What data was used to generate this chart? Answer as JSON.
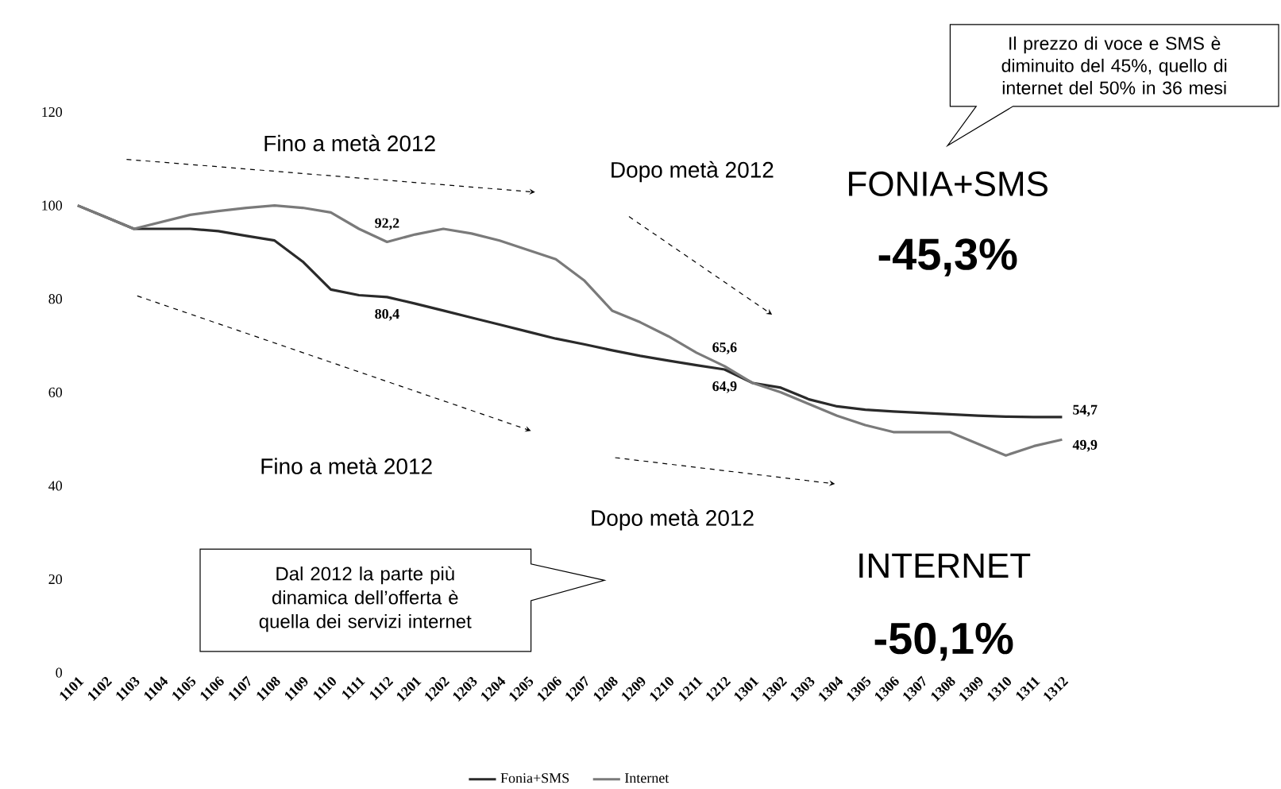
{
  "chart_data": {
    "type": "line",
    "categories": [
      "1101",
      "1102",
      "1103",
      "1104",
      "1105",
      "1106",
      "1107",
      "1108",
      "1109",
      "1110",
      "1111",
      "1112",
      "1201",
      "1202",
      "1203",
      "1204",
      "1205",
      "1206",
      "1207",
      "1208",
      "1209",
      "1210",
      "1211",
      "1212",
      "1301",
      "1302",
      "1303",
      "1304",
      "1305",
      "1306",
      "1307",
      "1308",
      "1309",
      "1310",
      "1311",
      "1312"
    ],
    "series": [
      {
        "name": "Fonia+SMS",
        "color": "#2a2a2a",
        "values": [
          100,
          97.5,
          95,
          95,
          95,
          94.5,
          93.5,
          92.5,
          88,
          82,
          80.8,
          80.4,
          79,
          77.5,
          76,
          74.5,
          73,
          71.5,
          70.3,
          69,
          67.8,
          66.8,
          65.8,
          64.9,
          62,
          61,
          58.5,
          57,
          56.3,
          55.9,
          55.6,
          55.3,
          55,
          54.8,
          54.7,
          54.7
        ],
        "value_labels": [
          null,
          null,
          null,
          null,
          null,
          null,
          null,
          null,
          null,
          null,
          null,
          "80,4",
          null,
          null,
          null,
          null,
          null,
          null,
          null,
          null,
          null,
          null,
          null,
          "64,9",
          null,
          null,
          null,
          null,
          null,
          null,
          null,
          null,
          null,
          null,
          null,
          "54,7"
        ]
      },
      {
        "name": "Internet",
        "color": "#7a7a7a",
        "values": [
          100,
          97.5,
          95,
          96.5,
          98,
          98.8,
          99.5,
          100,
          99.5,
          98.5,
          95,
          92.2,
          93.8,
          95,
          94,
          92.5,
          90.5,
          88.5,
          84,
          77.5,
          75,
          72,
          68.5,
          65.6,
          62,
          60,
          57.5,
          55,
          53,
          51.5,
          51.5,
          51.5,
          49,
          46.5,
          48.5,
          49.9
        ],
        "value_labels": [
          null,
          null,
          null,
          null,
          null,
          null,
          null,
          null,
          null,
          null,
          null,
          "92,2",
          null,
          null,
          null,
          null,
          null,
          null,
          null,
          null,
          null,
          null,
          null,
          "65,6",
          null,
          null,
          null,
          null,
          null,
          null,
          null,
          null,
          null,
          null,
          null,
          "49,9"
        ]
      }
    ],
    "ylim": [
      0,
      120
    ],
    "yticks": [
      0,
      20,
      40,
      60,
      80,
      100,
      120
    ],
    "legend": "bottom",
    "marker": "none",
    "line_style": "solid",
    "grid": false,
    "annotations": [
      "Il prezzo di voce e SMS è diminuito del 45%,  quello di internet del 50% in 36 mesi",
      "Fino a metà 2012",
      "Dopo metà 2012",
      "FONIA+SMS",
      "-45,3%",
      "Fino a metà 2012",
      "Dopo metà 2012",
      "INTERNET",
      "-50,1%",
      "Dal 2012 la parte più dinamica dell’offerta è quella dei servizi internet"
    ]
  }
}
